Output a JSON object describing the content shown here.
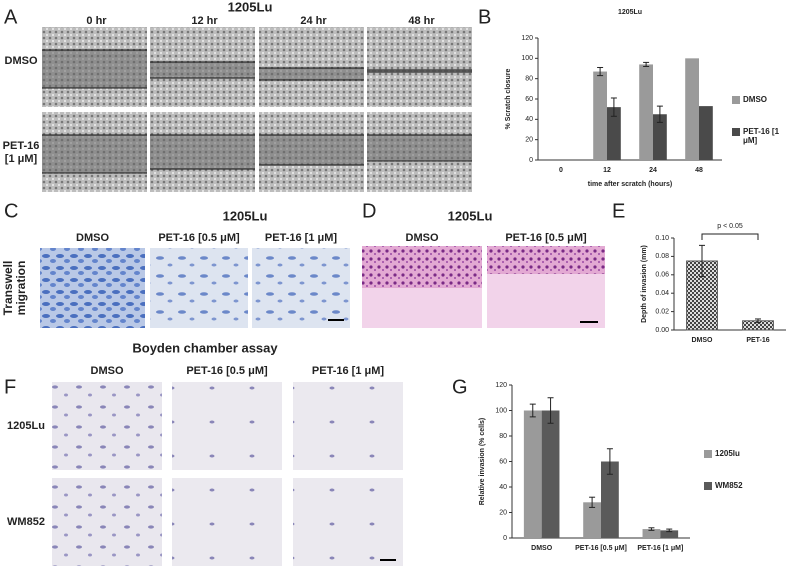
{
  "figure": {
    "panel_letters": [
      "A",
      "B",
      "C",
      "D",
      "E",
      "F",
      "G"
    ],
    "panel_a": {
      "title": "1205Lu",
      "columns": [
        "0 hr",
        "12 hr",
        "24 hr",
        "48 hr"
      ],
      "rows": [
        "DMSO",
        "PET-16 [1 μM]"
      ]
    },
    "panel_c": {
      "title": "1205Lu",
      "columns": [
        "DMSO",
        "PET-16 [0.5 μM]",
        "PET-16 [1 μM]"
      ],
      "row_label": "Transwell migration"
    },
    "panel_d": {
      "title": "1205Lu",
      "columns": [
        "DMSO",
        "PET-16 [0.5 μM]"
      ]
    },
    "panel_f": {
      "title": "Boyden chamber assay",
      "columns": [
        "DMSO",
        "PET-16 [0.5 μM]",
        "PET-16 [1 μM]"
      ],
      "rows": [
        "1205Lu",
        "WM852"
      ]
    }
  },
  "chart_data": [
    {
      "type": "bar",
      "title": "1205Lu",
      "y_label": "% Scratch closure",
      "x_label": "time after scratch (hours)",
      "categories": [
        "0",
        "12",
        "24",
        "48"
      ],
      "series": [
        {
          "name": "DMSO",
          "color": "#9a9a9a",
          "values": [
            null,
            87,
            94,
            100
          ],
          "errors": [
            null,
            4,
            2,
            null
          ]
        },
        {
          "name": "PET-16 [1 μM]",
          "color": "#4a4a4a",
          "values": [
            null,
            52,
            45,
            53
          ],
          "errors": [
            null,
            9,
            8,
            null
          ]
        }
      ],
      "ylim": [
        0,
        120
      ],
      "yticks": [
        0,
        20,
        40,
        60,
        80,
        100,
        120
      ],
      "legend": "right"
    },
    {
      "type": "bar",
      "y_label": "Depth of invasion (mm)",
      "categories": [
        "DMSO",
        "PET-16"
      ],
      "values": [
        0.075,
        0.01
      ],
      "errors": [
        0.017,
        0.002
      ],
      "color": "#555555",
      "hatch": true,
      "annotation": "p < 0.05",
      "ylim": [
        0,
        0.1
      ],
      "yticks": [
        {
          "value": 0,
          "label": "0.00"
        },
        {
          "value": 0.02,
          "label": "0.02"
        },
        {
          "value": 0.04,
          "label": "0.04"
        },
        {
          "value": 0.06,
          "label": "0.06"
        },
        {
          "value": 0.08,
          "label": "0.08"
        },
        {
          "value": 0.1,
          "label": "0.10"
        }
      ]
    },
    {
      "type": "bar",
      "y_label": "Relative invasion (% cells)",
      "categories": [
        "DMSO",
        "PET-16 [0.5 μM]",
        "PET-16 [1 μM]"
      ],
      "series": [
        {
          "name": "1205lu",
          "color": "#9a9a9a",
          "values": [
            100,
            28,
            7
          ],
          "errors": [
            5,
            4,
            1
          ]
        },
        {
          "name": "WM852",
          "color": "#5a5a5a",
          "values": [
            100,
            60,
            6
          ],
          "errors": [
            10,
            10,
            1
          ]
        }
      ],
      "ylim": [
        0,
        120
      ],
      "yticks": [
        0,
        20,
        40,
        60,
        80,
        100,
        120
      ],
      "legend": "right"
    }
  ]
}
